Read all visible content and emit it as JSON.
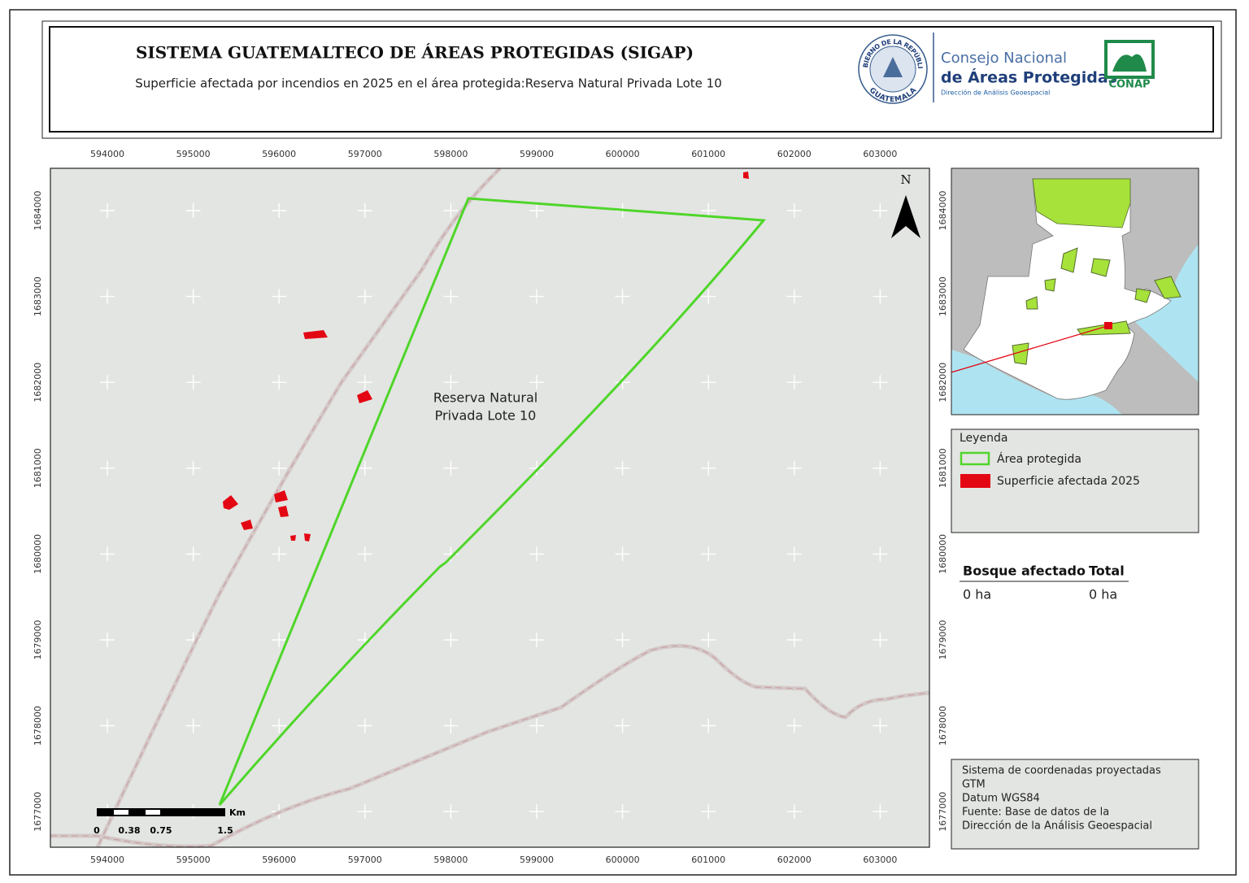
{
  "header": {
    "title": "SISTEMA GUATEMALTECO DE ÁREAS PROTEGIDAS  (SIGAP)",
    "subtitle": "Superficie afectada por incendios en 2025 en el área protegida:Reserva Natural Privada Lote 10",
    "logo": {
      "seal_top": "GOBIERNO DE LA REPÚBLICA",
      "seal_bottom": "GUATEMALA",
      "org_line1": "Consejo Nacional",
      "org_line2": "de Áreas Protegidas",
      "org_line3": "Dirección de Análisis Geoespacial",
      "acronym": "CONAP"
    }
  },
  "map": {
    "x_ticks": [
      "594000",
      "595000",
      "596000",
      "597000",
      "598000",
      "599000",
      "600000",
      "601000",
      "602000",
      "603000"
    ],
    "y_ticks": [
      "1684000",
      "1683000",
      "1682000",
      "1681000",
      "1680000",
      "1679000",
      "1678000",
      "1677000"
    ],
    "area_label": [
      "Reserva Natural",
      "Privada Lote 10"
    ],
    "north": "N",
    "scale": {
      "unit": "Km",
      "labels": [
        "0",
        "0.38",
        "0.75",
        "1.5"
      ]
    }
  },
  "legend": {
    "title": "Leyenda",
    "items": [
      "Área protegida",
      "Superficie afectada 2025"
    ]
  },
  "summary": {
    "headers": [
      "Bosque afectado",
      "Total"
    ],
    "row": [
      "0 ha",
      "0 ha"
    ]
  },
  "notes": [
    "Sistema de coordenadas proyectadas",
    "GTM",
    "Datum WGS84",
    "Fuente: Base de datos de la",
    "Dirección de la Análisis Geoespacial"
  ]
}
